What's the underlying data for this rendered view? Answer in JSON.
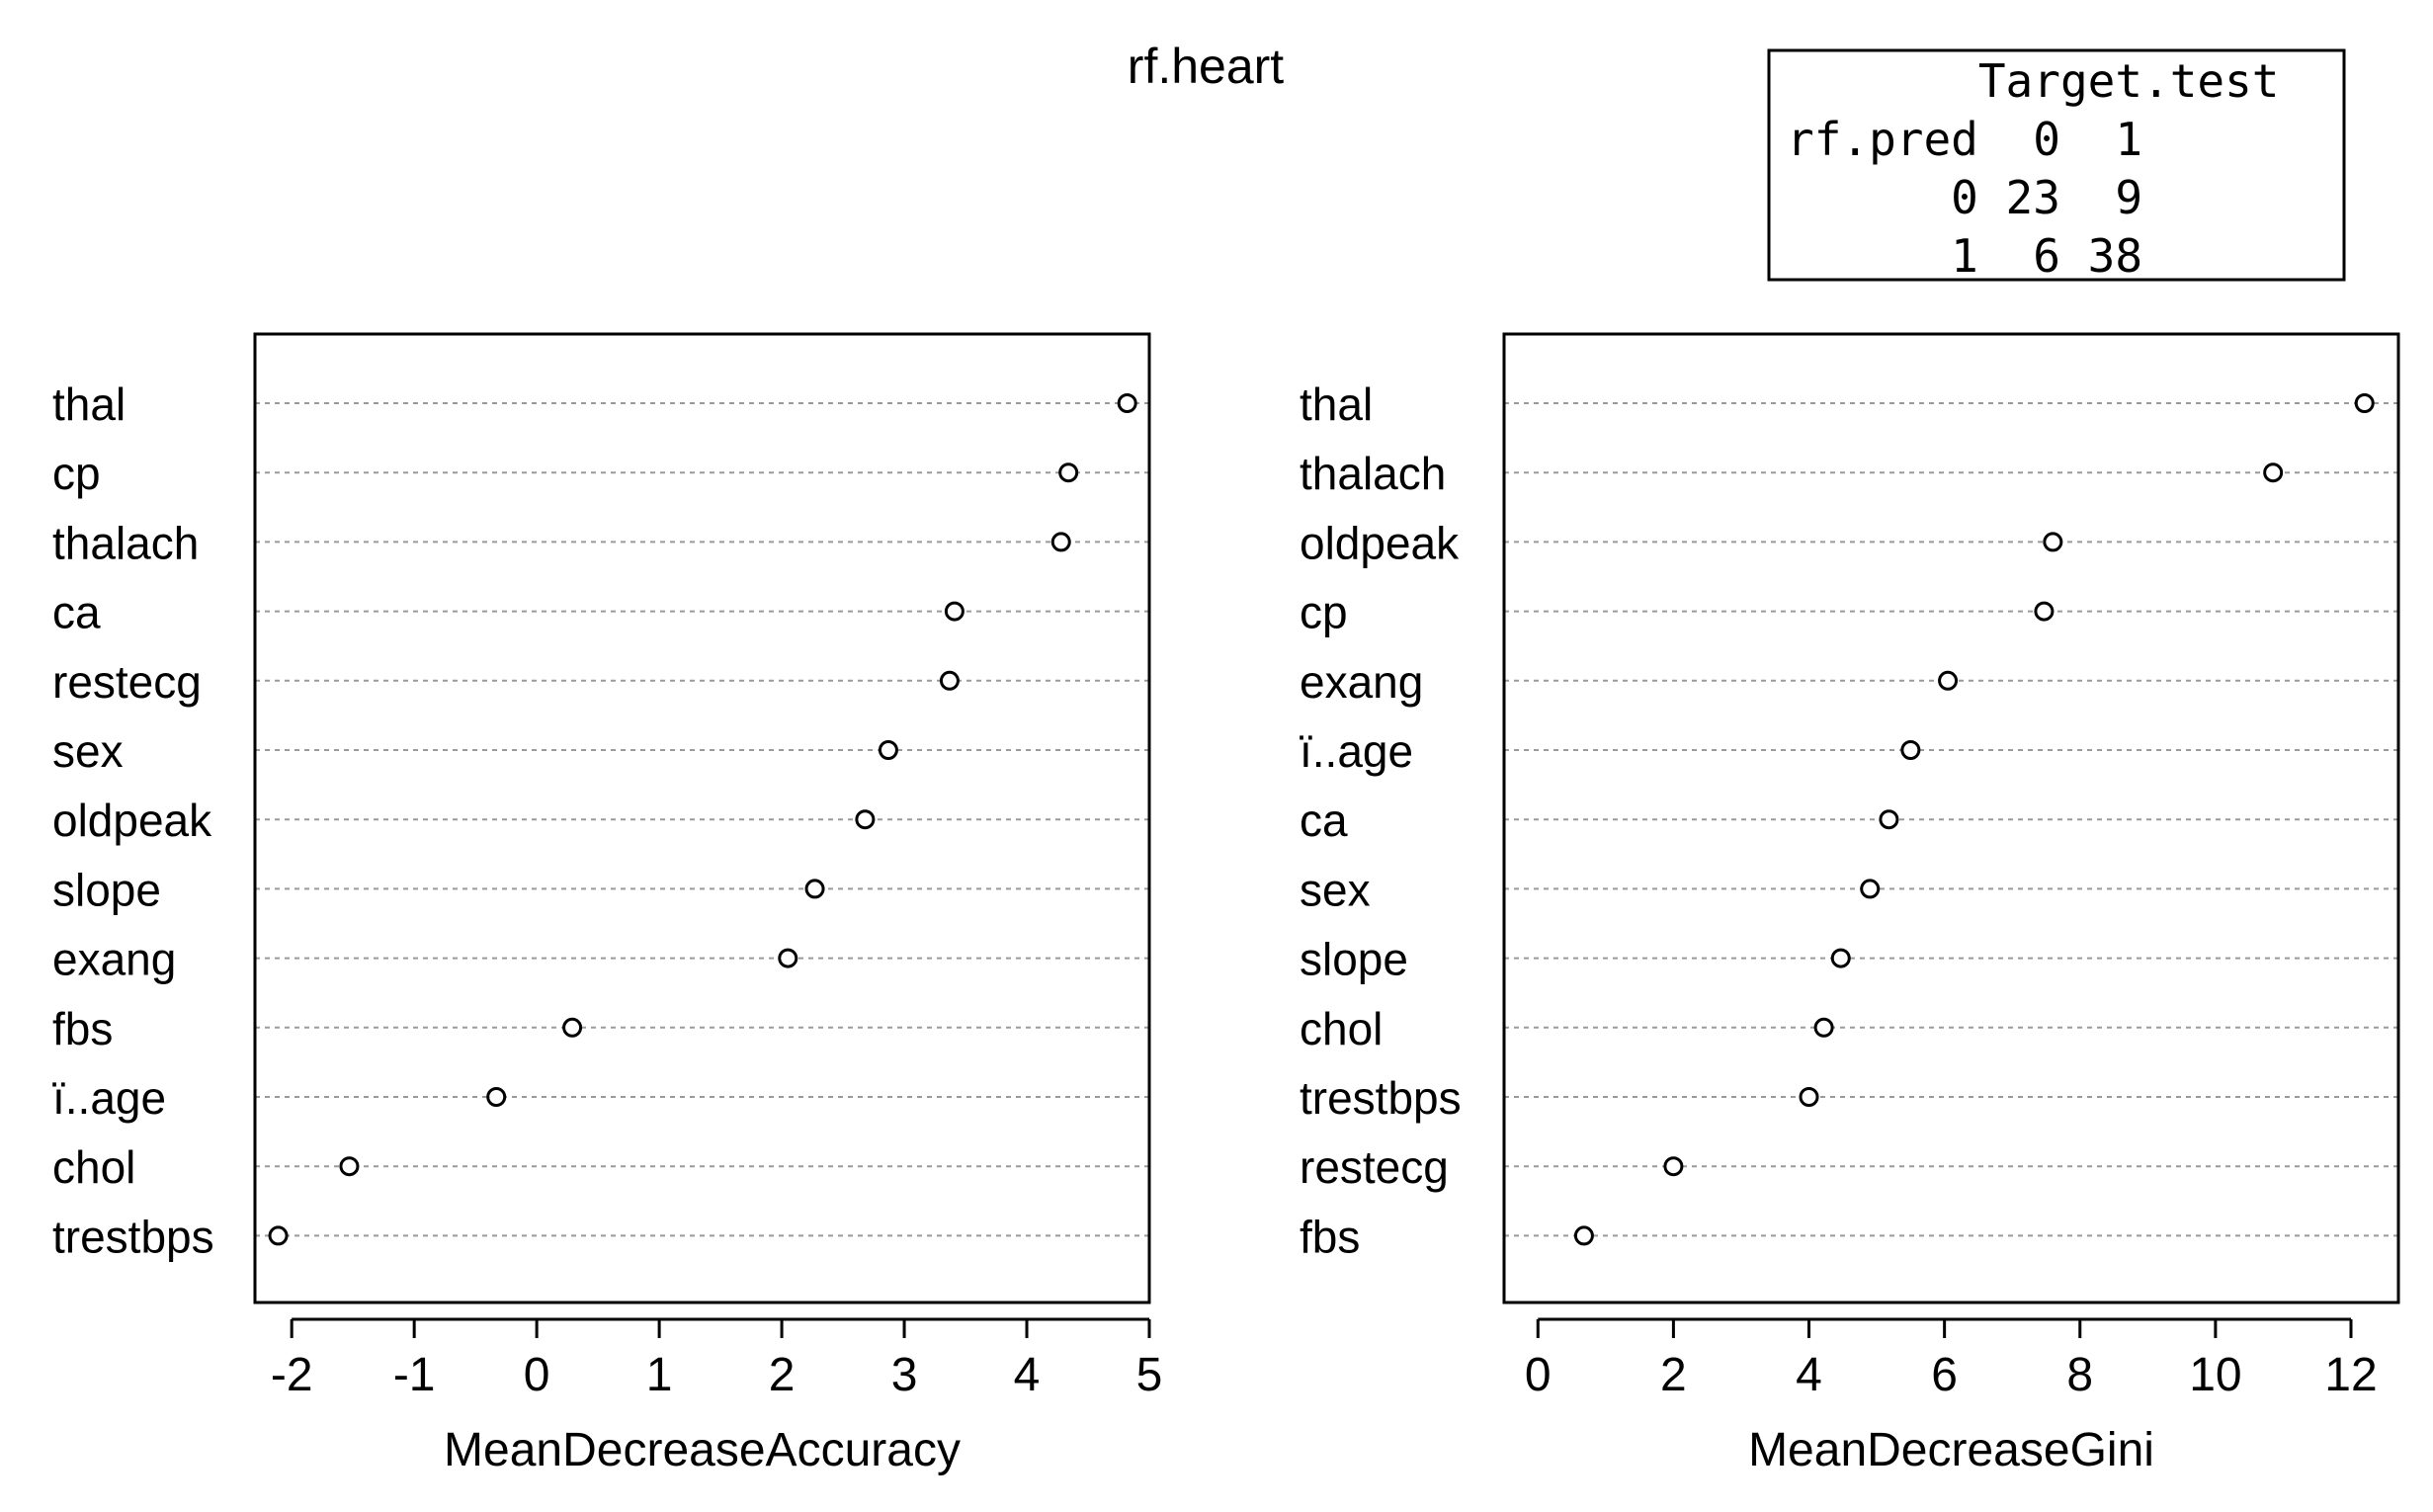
{
  "title": "rf.heart",
  "confusion_table": {
    "lines": [
      "       Target.test",
      "rf.pred  0  1",
      "      0 23  9",
      "      1  6 38"
    ]
  },
  "chart_data": [
    {
      "type": "scatter",
      "subtype": "dotchart",
      "xlabel": "MeanDecreaseAccuracy",
      "xlim": [
        -2.3,
        5.0
      ],
      "xticks": [
        -2,
        -1,
        0,
        1,
        2,
        3,
        4,
        5
      ],
      "grid": "dotted horizontal",
      "categories": [
        "thal",
        "cp",
        "thalach",
        "ca",
        "restecg",
        "sex",
        "oldpeak",
        "slope",
        "exang",
        "fbs",
        "ï..age",
        "chol",
        "trestbps"
      ],
      "values": [
        4.82,
        4.34,
        4.28,
        3.41,
        3.37,
        2.87,
        2.68,
        2.27,
        2.05,
        0.29,
        -0.33,
        -1.53,
        -2.11
      ]
    },
    {
      "type": "scatter",
      "subtype": "dotchart",
      "xlabel": "MeanDecreaseGini",
      "xlim": [
        -0.5,
        12.7
      ],
      "xticks": [
        0,
        2,
        4,
        6,
        8,
        10,
        12
      ],
      "grid": "dotted horizontal",
      "categories": [
        "thal",
        "thalach",
        "oldpeak",
        "cp",
        "exang",
        "ï..age",
        "ca",
        "sex",
        "slope",
        "chol",
        "trestbps",
        "restecg",
        "fbs"
      ],
      "values": [
        12.2,
        10.85,
        7.6,
        7.47,
        6.05,
        5.5,
        5.18,
        4.9,
        4.47,
        4.22,
        4.0,
        2.0,
        0.68
      ]
    }
  ]
}
